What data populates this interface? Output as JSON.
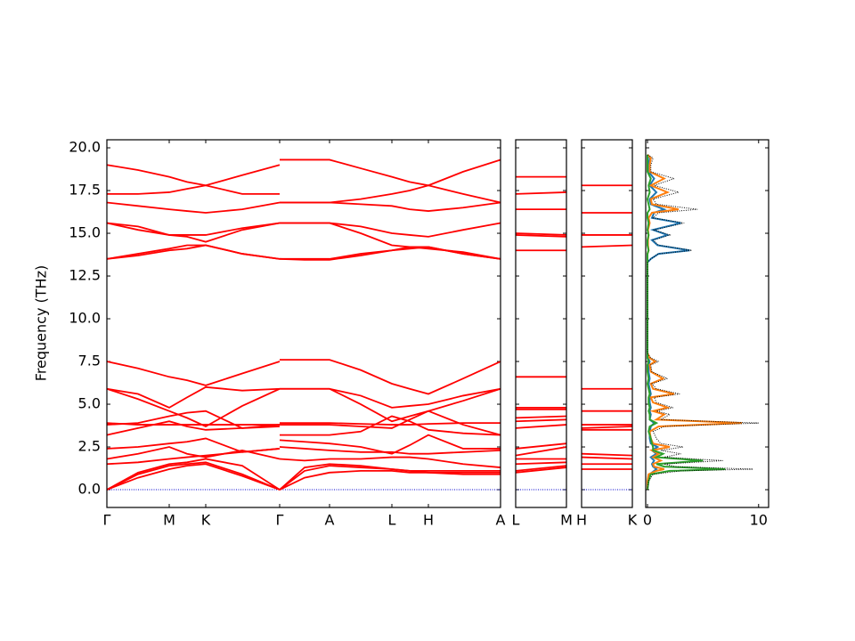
{
  "chart_data": [
    {
      "type": "band",
      "ylabel": "Frequency (THz)",
      "color": "#ff0000",
      "xlim": [
        0,
        4.42
      ],
      "ylim": [
        -1.04,
        20.47
      ],
      "xticks": [
        {
          "value": 0,
          "label": "Γ"
        },
        {
          "value": 0.7,
          "label": "M"
        },
        {
          "value": 1.11,
          "label": "K"
        },
        {
          "value": 1.94,
          "label": "Γ"
        },
        {
          "value": 2.5,
          "label": "A"
        },
        {
          "value": 3.2,
          "label": "L"
        },
        {
          "value": 3.61,
          "label": "H"
        },
        {
          "value": 4.42,
          "label": "A"
        }
      ],
      "yticks": [
        {
          "value": 0,
          "label": "0.0"
        },
        2.5,
        {
          "value": 5,
          "label": "5.0"
        },
        7.5,
        {
          "value": 10,
          "label": "10.0"
        },
        12.5,
        {
          "value": 15,
          "label": "15.0"
        },
        17.5,
        {
          "value": 20,
          "label": "20.0"
        }
      ],
      "x": [
        0,
        0.35,
        0.7,
        0.9,
        1.11,
        1.52,
        1.94,
        1.94,
        1.94,
        2.22,
        2.5,
        2.85,
        3.2,
        3.4,
        3.61,
        4.0,
        4.42
      ],
      "series": [
        {
          "values": [
            19.0,
            18.7,
            18.3,
            18.0,
            17.8,
            18.4,
            19.0,
            null,
            19.3,
            19.3,
            19.3,
            18.8,
            18.3,
            18.0,
            17.8,
            18.6,
            19.3
          ]
        },
        {
          "values": [
            17.3,
            17.3,
            17.4,
            17.6,
            17.8,
            17.3,
            17.3,
            null,
            16.8,
            16.8,
            16.8,
            17.0,
            17.3,
            17.5,
            17.8,
            17.3,
            16.8
          ]
        },
        {
          "values": [
            16.8,
            16.6,
            16.4,
            16.3,
            16.2,
            16.4,
            16.8,
            null,
            16.8,
            16.8,
            16.8,
            16.7,
            16.6,
            16.4,
            16.3,
            16.5,
            16.8
          ]
        },
        {
          "values": [
            15.6,
            15.4,
            14.9,
            14.9,
            14.9,
            15.3,
            15.6,
            null,
            15.6,
            15.6,
            15.6,
            15.4,
            15.0,
            14.9,
            14.8,
            15.2,
            15.6
          ]
        },
        {
          "values": [
            15.6,
            15.2,
            14.9,
            14.8,
            14.5,
            15.2,
            15.6,
            null,
            15.6,
            15.6,
            15.6,
            15.0,
            14.3,
            14.2,
            14.2,
            13.8,
            13.5
          ]
        },
        {
          "values": [
            13.5,
            13.8,
            14.1,
            14.3,
            14.3,
            13.8,
            13.5,
            null,
            13.5,
            13.5,
            13.5,
            13.8,
            14.0,
            14.1,
            14.2,
            13.8,
            13.5
          ]
        },
        {
          "values": [
            13.5,
            13.7,
            14.0,
            14.1,
            14.3,
            13.8,
            13.5,
            null,
            13.5,
            13.45,
            13.45,
            13.7,
            14.0,
            14.2,
            14.1,
            13.9,
            13.5
          ]
        },
        {
          "values": [
            7.5,
            7.1,
            6.6,
            6.4,
            6.1,
            6.8,
            7.5,
            null,
            7.6,
            7.6,
            7.6,
            7.0,
            6.2,
            5.9,
            5.6,
            6.5,
            7.5
          ]
        },
        {
          "values": [
            5.9,
            5.6,
            4.8,
            5.4,
            6.0,
            5.8,
            5.9,
            null,
            5.9,
            5.9,
            5.9,
            5.5,
            4.8,
            4.9,
            5.0,
            5.5,
            5.9
          ]
        },
        {
          "values": [
            5.9,
            5.3,
            4.6,
            4.2,
            3.7,
            4.9,
            5.9,
            null,
            5.9,
            5.9,
            5.9,
            5.0,
            4.0,
            4.3,
            4.6,
            5.2,
            5.9
          ]
        },
        {
          "values": [
            3.9,
            3.8,
            3.8,
            3.8,
            3.8,
            3.8,
            3.8,
            null,
            3.9,
            3.9,
            3.9,
            3.85,
            3.8,
            3.8,
            3.85,
            3.9,
            3.9
          ]
        },
        {
          "values": [
            3.8,
            3.9,
            4.3,
            4.5,
            4.6,
            3.6,
            3.7,
            null,
            3.8,
            3.8,
            3.8,
            3.7,
            3.6,
            4.1,
            4.6,
            3.8,
            3.2
          ]
        },
        {
          "values": [
            3.2,
            3.6,
            4.0,
            3.7,
            3.5,
            3.6,
            3.8,
            null,
            3.2,
            3.2,
            3.2,
            3.4,
            4.3,
            4.0,
            3.5,
            3.3,
            3.2
          ]
        },
        {
          "values": [
            2.4,
            2.5,
            2.7,
            2.8,
            3.0,
            2.2,
            2.4,
            null,
            2.9,
            2.8,
            2.7,
            2.5,
            2.1,
            2.6,
            3.2,
            2.4,
            2.4
          ]
        },
        {
          "values": [
            1.8,
            2.1,
            2.5,
            2.1,
            1.9,
            2.3,
            1.8,
            null,
            2.5,
            2.4,
            2.3,
            2.2,
            2.2,
            2.1,
            2.1,
            2.2,
            2.3
          ]
        },
        {
          "values": [
            1.5,
            1.6,
            1.8,
            1.9,
            2.0,
            2.2,
            2.4,
            null,
            1.8,
            1.7,
            1.8,
            1.8,
            1.9,
            1.9,
            1.8,
            1.5,
            1.3
          ]
        },
        {
          "values": [
            0,
            1.0,
            1.5,
            1.6,
            1.8,
            1.4,
            0,
            null,
            0,
            1.3,
            1.5,
            1.4,
            1.2,
            1.1,
            1.1,
            1.1,
            1.1
          ]
        },
        {
          "values": [
            0,
            0.9,
            1.4,
            1.5,
            1.6,
            0.9,
            0,
            null,
            0,
            1.1,
            1.4,
            1.3,
            1.2,
            1.1,
            1.0,
            1.0,
            1.0
          ]
        },
        {
          "values": [
            0,
            0.7,
            1.2,
            1.4,
            1.5,
            0.8,
            0,
            null,
            0,
            0.7,
            1.0,
            1.1,
            1.1,
            1.0,
            1.0,
            0.9,
            0.9
          ]
        }
      ]
    },
    {
      "type": "band",
      "color": "#ff0000",
      "xlim": [
        0,
        1
      ],
      "xticks": [
        {
          "value": 0,
          "label": "L"
        },
        {
          "value": 1,
          "label": "M"
        }
      ],
      "x": [
        0,
        1
      ],
      "series": [
        {
          "values": [
            18.3,
            18.3
          ]
        },
        {
          "values": [
            17.3,
            17.4
          ]
        },
        {
          "values": [
            16.4,
            16.4
          ]
        },
        {
          "values": [
            15.0,
            14.9
          ]
        },
        {
          "values": [
            14.9,
            14.8
          ]
        },
        {
          "values": [
            14.0,
            14.0
          ]
        },
        {
          "values": [
            6.6,
            6.6
          ]
        },
        {
          "values": [
            4.8,
            4.8
          ]
        },
        {
          "values": [
            4.7,
            4.7
          ]
        },
        {
          "values": [
            4.2,
            4.3
          ]
        },
        {
          "values": [
            4.0,
            4.1
          ]
        },
        {
          "values": [
            3.6,
            3.8
          ]
        },
        {
          "values": [
            2.4,
            2.7
          ]
        },
        {
          "values": [
            2.0,
            2.5
          ]
        },
        {
          "values": [
            1.8,
            1.8
          ]
        },
        {
          "values": [
            1.5,
            1.6
          ]
        },
        {
          "values": [
            1.1,
            1.4
          ]
        },
        {
          "values": [
            1.0,
            1.3
          ]
        }
      ]
    },
    {
      "type": "band",
      "color": "#ff0000",
      "xlim": [
        0,
        1
      ],
      "xticks": [
        {
          "value": 0,
          "label": "H"
        },
        {
          "value": 1,
          "label": "K"
        }
      ],
      "x": [
        0,
        1
      ],
      "series": [
        {
          "values": [
            17.8,
            17.8
          ]
        },
        {
          "values": [
            16.2,
            16.2
          ]
        },
        {
          "values": [
            14.9,
            14.9
          ]
        },
        {
          "values": [
            14.2,
            14.3
          ]
        },
        {
          "values": [
            5.9,
            5.9
          ]
        },
        {
          "values": [
            4.6,
            4.6
          ]
        },
        {
          "values": [
            3.8,
            3.8
          ]
        },
        {
          "values": [
            3.6,
            3.7
          ]
        },
        {
          "values": [
            3.5,
            3.5
          ]
        },
        {
          "values": [
            2.1,
            2.0
          ]
        },
        {
          "values": [
            1.9,
            1.8
          ]
        },
        {
          "values": [
            1.5,
            1.5
          ]
        },
        {
          "values": [
            1.2,
            1.2
          ]
        }
      ]
    },
    {
      "type": "dos",
      "xlim": [
        -0.16,
        10.9
      ],
      "xticks": [
        0,
        10
      ],
      "y": [
        0,
        0.5,
        0.9,
        1.1,
        1.2,
        1.35,
        1.5,
        1.7,
        1.9,
        2.1,
        2.3,
        2.5,
        2.7,
        3.0,
        3.4,
        3.7,
        3.9,
        4.1,
        4.4,
        4.6,
        4.8,
        5.1,
        5.4,
        5.6,
        5.9,
        6.2,
        6.5,
        6.9,
        7.3,
        7.5,
        7.7,
        8.0,
        13.3,
        13.5,
        13.8,
        14.0,
        14.3,
        14.6,
        14.9,
        15.2,
        15.6,
        15.9,
        16.2,
        16.4,
        16.7,
        17.0,
        17.4,
        17.8,
        18.2,
        18.6,
        19.0,
        19.4,
        19.6
      ],
      "series": [
        {
          "color": "#1f77b4",
          "values": [
            0,
            0,
            0.2,
            0.6,
            0.8,
            0.5,
            0.4,
            0.6,
            0.3,
            0.8,
            0.4,
            0.9,
            0.3,
            0.2,
            0.2,
            0.3,
            0.6,
            0.2,
            0.3,
            0.2,
            0.3,
            0.2,
            0.2,
            0.3,
            0.2,
            0.1,
            0.2,
            0.1,
            0.1,
            0.2,
            0.05,
            0,
            0,
            0.3,
            1,
            3.8,
            0.9,
            0.4,
            1.8,
            0.5,
            3,
            0.4,
            0.6,
            1.5,
            0.3,
            0.2,
            0.8,
            0.2,
            0.6,
            0.1,
            0.1,
            0.2,
            0
          ]
        },
        {
          "color": "#ff7f0e",
          "values": [
            0,
            0,
            0.1,
            0.8,
            1.5,
            0.6,
            0.5,
            1.2,
            0.5,
            1.0,
            0.4,
            2.0,
            0.5,
            0.3,
            0.2,
            1.0,
            8.5,
            0.8,
            1.5,
            0.5,
            1.8,
            0.5,
            0.3,
            2.4,
            0.5,
            0.3,
            1.4,
            0.3,
            0.2,
            0.7,
            0.2,
            0,
            0,
            0,
            0,
            0.1,
            0.05,
            0.05,
            0.1,
            0.05,
            0.2,
            0.1,
            0.4,
            2.8,
            0.4,
            0.3,
            1.8,
            0.3,
            1.5,
            0.2,
            0.2,
            0.3,
            0
          ]
        },
        {
          "color": "#2ca02c",
          "values": [
            0,
            0.1,
            0.3,
            2,
            7,
            1.5,
            0.8,
            5,
            0.8,
            1.4,
            0.5,
            0.5,
            0.4,
            0.3,
            0.1,
            0.2,
            0.8,
            0.2,
            0.2,
            0.1,
            0.2,
            0.1,
            0.1,
            0.2,
            0.1,
            0,
            0.1,
            0,
            0,
            0.1,
            0,
            0,
            0,
            0,
            0,
            0.1,
            0,
            0,
            0.1,
            0,
            0.1,
            0,
            0,
            0.2,
            0.1,
            0,
            0.2,
            0.1,
            0.3,
            0,
            0,
            0,
            0
          ]
        },
        {
          "color": "#000000",
          "linestyle": "dotted",
          "values": [
            0,
            0.1,
            0.5,
            3,
            9.5,
            2.5,
            1.5,
            6.8,
            1.5,
            3,
            1.2,
            3.2,
            1.2,
            0.8,
            0.5,
            1.5,
            10,
            1.2,
            2,
            0.8,
            2.3,
            0.8,
            0.6,
            2.9,
            0.8,
            0.4,
            1.8,
            0.4,
            0.3,
            1,
            0.3,
            0,
            0,
            0.3,
            1,
            4,
            1,
            0.5,
            2,
            0.6,
            3.3,
            0.5,
            1,
            4.5,
            0.8,
            0.5,
            2.8,
            0.6,
            2.4,
            0.3,
            0.3,
            0.5,
            0
          ]
        }
      ]
    }
  ]
}
